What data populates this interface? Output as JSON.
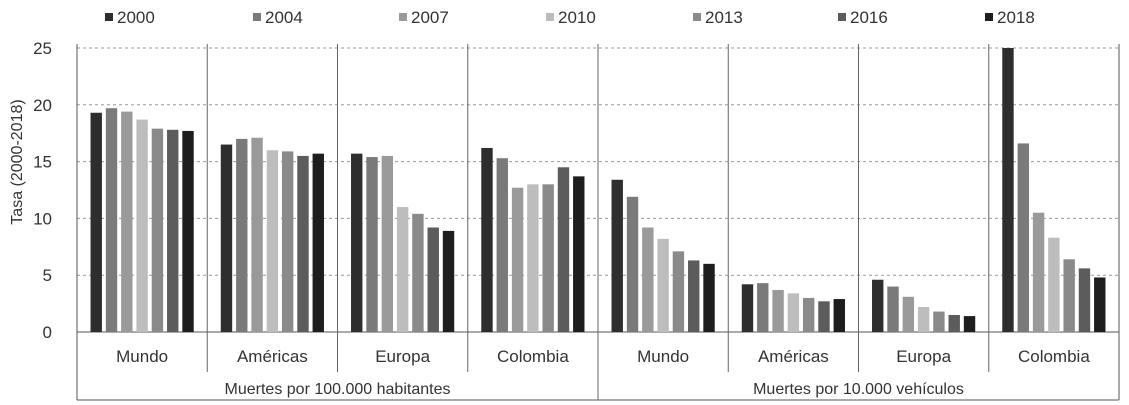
{
  "chart_data": {
    "type": "bar",
    "ylabel": "Tasa (2000-2018)",
    "ylim": [
      0,
      25
    ],
    "yticks": [
      "0",
      "5",
      "10",
      "15",
      "20",
      "25"
    ],
    "grid": true,
    "legend_position": "top",
    "series": [
      {
        "name": "2000",
        "color": "#2e2e2e"
      },
      {
        "name": "2004",
        "color": "#7a7a7a"
      },
      {
        "name": "2007",
        "color": "#9a9a9a"
      },
      {
        "name": "2010",
        "color": "#bdbdbd"
      },
      {
        "name": "2013",
        "color": "#8a8a8a"
      },
      {
        "name": "2016",
        "color": "#5c5c5c"
      },
      {
        "name": "2018",
        "color": "#1e1e1e"
      }
    ],
    "groups": [
      {
        "label": "Muertes por 100.000 habitantes",
        "categories": [
          {
            "label": "Mundo",
            "values": [
              19.3,
              19.7,
              19.4,
              18.7,
              17.9,
              17.8,
              17.7
            ]
          },
          {
            "label": "Américas",
            "values": [
              16.5,
              17.0,
              17.1,
              16.0,
              15.9,
              15.5,
              15.7
            ]
          },
          {
            "label": "Europa",
            "values": [
              15.7,
              15.4,
              15.5,
              11.0,
              10.4,
              9.2,
              8.9
            ]
          },
          {
            "label": "Colombia",
            "values": [
              16.2,
              15.3,
              12.7,
              13.0,
              13.0,
              14.5,
              13.7
            ]
          }
        ]
      },
      {
        "label": "Muertes por 10.000 vehículos",
        "categories": [
          {
            "label": "Mundo",
            "values": [
              13.4,
              11.9,
              9.2,
              8.2,
              7.1,
              6.3,
              6.0
            ]
          },
          {
            "label": "Américas",
            "values": [
              4.2,
              4.3,
              3.7,
              3.4,
              3.0,
              2.7,
              2.9
            ]
          },
          {
            "label": "Europa",
            "values": [
              4.6,
              4.0,
              3.1,
              2.2,
              1.8,
              1.5,
              1.4
            ]
          },
          {
            "label": "Colombia",
            "values": [
              25.0,
              16.6,
              10.5,
              8.3,
              6.4,
              5.6,
              4.8
            ]
          }
        ]
      }
    ]
  }
}
